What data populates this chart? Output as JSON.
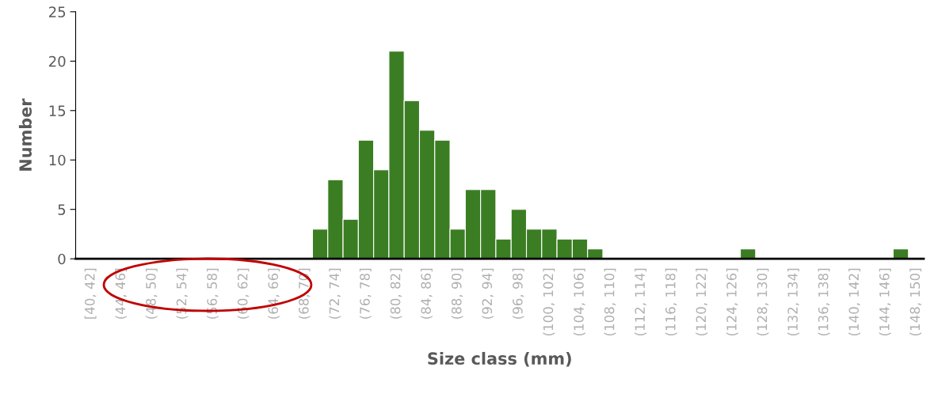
{
  "chart_data": {
    "type": "bar",
    "xlabel": "Size class (mm)",
    "ylabel": "Number",
    "color": "#3b7d23",
    "categories": [
      "[40, 42]",
      null,
      "(44, 46]",
      null,
      "(48, 50]",
      null,
      "(52, 54]",
      null,
      "(56, 58]",
      null,
      "(60, 62]",
      null,
      "(64, 66]",
      null,
      "(68, 70]",
      null,
      "(72, 74]",
      null,
      "(76, 78]",
      null,
      "(80, 82]",
      null,
      "(84, 86]",
      null,
      "(88, 90]",
      null,
      "(92, 94]",
      null,
      "(96, 98]",
      null,
      "(100, 102]",
      null,
      "(104, 106]",
      null,
      "(108, 110]",
      null,
      "(112, 114]",
      null,
      "(116, 118]",
      null,
      "(120, 122]",
      null,
      "(124, 126]",
      null,
      "(128, 130]",
      null,
      "(132, 134]",
      null,
      "(136, 138]",
      null,
      "(140, 142]",
      null,
      "(144, 146]",
      null,
      "(148, 150]"
    ],
    "values": [
      0,
      0,
      0,
      0,
      0,
      0,
      0,
      0,
      0,
      0,
      0,
      0,
      0,
      0,
      0,
      3,
      8,
      4,
      12,
      9,
      21,
      16,
      13,
      12,
      3,
      7,
      7,
      2,
      5,
      3,
      3,
      2,
      2,
      1,
      0,
      0,
      0,
      0,
      0,
      0,
      0,
      0,
      0,
      1,
      0,
      0,
      0,
      0,
      0,
      0,
      0,
      0,
      0,
      1,
      0
    ],
    "ylim": [
      0,
      25
    ],
    "yticks": [
      0,
      5,
      10,
      15,
      20,
      25
    ],
    "grid": false,
    "legend": false
  }
}
